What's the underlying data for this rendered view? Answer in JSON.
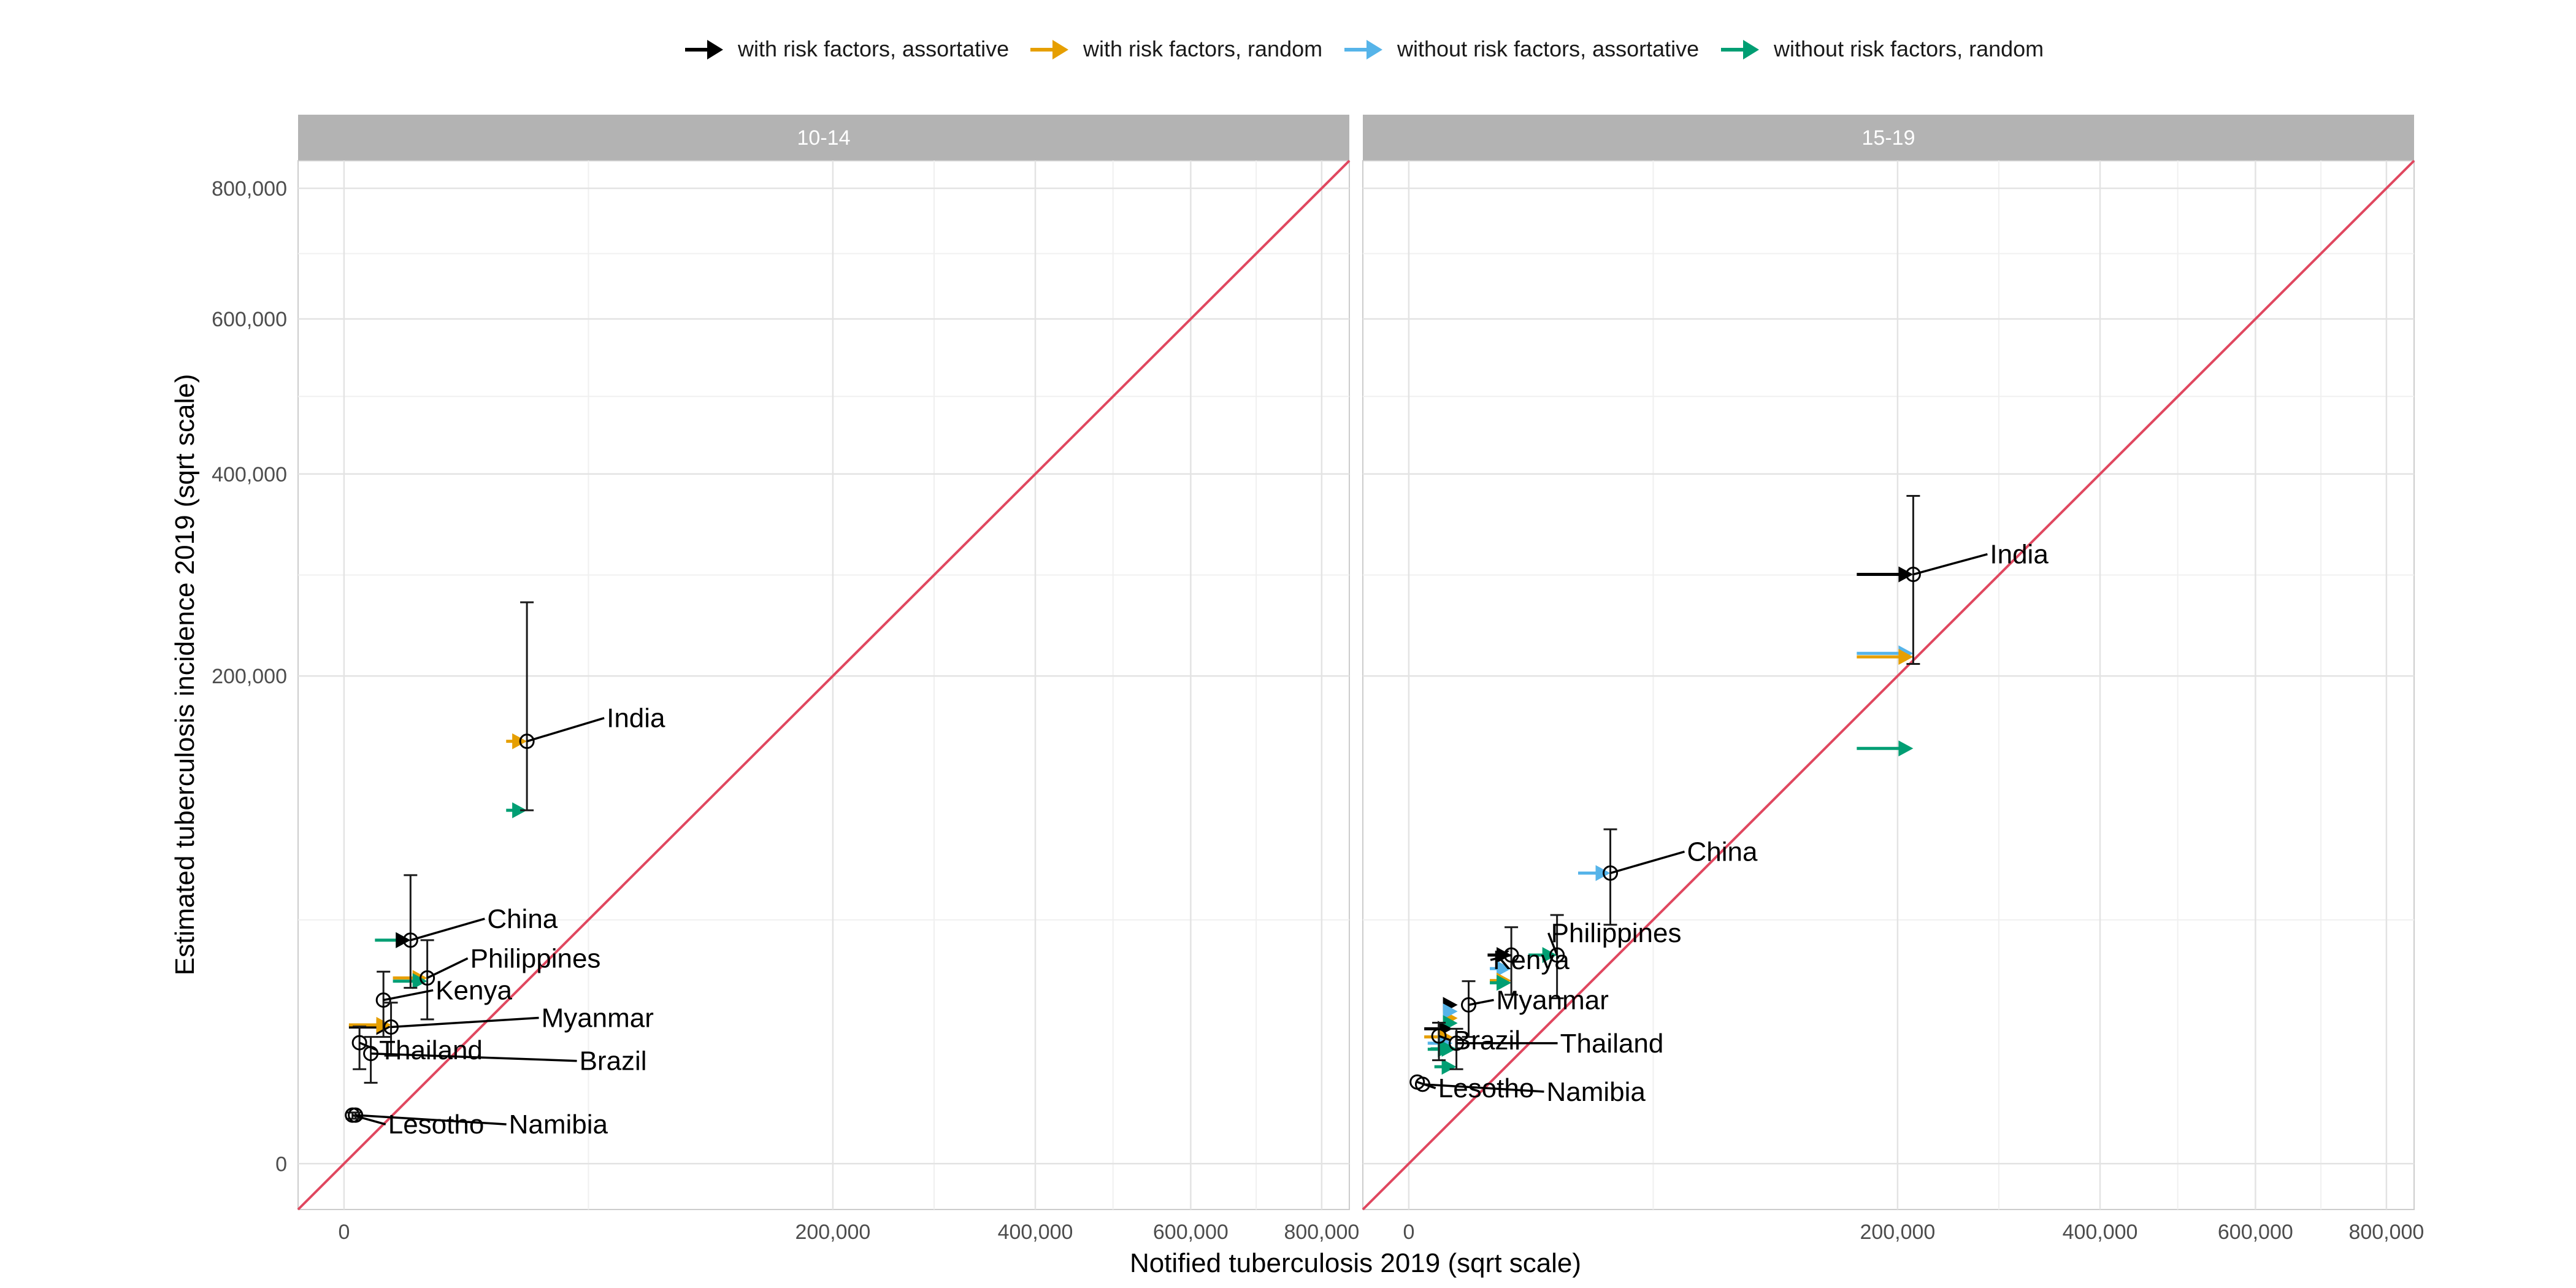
{
  "chart_data": {
    "type": "scatter",
    "xlabel": "Notified tuberculosis 2019 (sqrt scale)",
    "ylabel": "Estimated tuberculosis incidence 2019 (sqrt scale)",
    "x_scale": "sqrt",
    "y_scale": "sqrt",
    "xlim": [
      0,
      800000
    ],
    "ylim": [
      0,
      800000
    ],
    "x_ticks": [
      0,
      200000,
      400000,
      600000,
      800000
    ],
    "x_tick_labels": [
      "0",
      "200,000",
      "400,000",
      "600,000",
      "800,000"
    ],
    "y_ticks": [
      0,
      200000,
      400000,
      600000,
      800000
    ],
    "y_tick_labels": [
      "0",
      "200,000",
      "400,000",
      "600,000",
      "800,000"
    ],
    "grid": true,
    "reference_line": "y = x",
    "legend_position": "top",
    "legend": [
      {
        "label": "with risk factors, assortative",
        "color": "#000000"
      },
      {
        "label": "with risk factors, random",
        "color": "#E69F00"
      },
      {
        "label": "without risk factors, assortative",
        "color": "#56B4E9"
      },
      {
        "label": "without risk factors, random",
        "color": "#009E73"
      }
    ],
    "panels": [
      {
        "strip": "10-14",
        "countries": [
          {
            "name": "India",
            "x": 28000,
            "y": 150000,
            "ylo": 105000,
            "yhi": 265000,
            "arrows": [
              {
                "scenario": 1,
                "x0": 22000,
                "x1": 28000,
                "y": 150000
              },
              {
                "scenario": 3,
                "x0": 22000,
                "x1": 28000,
                "y": 105000
              }
            ]
          },
          {
            "name": "China",
            "x": 3700,
            "y": 42000,
            "ylo": 26000,
            "yhi": 70000,
            "arrows": [
              {
                "scenario": 3,
                "x0": 800,
                "x1": 3700,
                "y": 42000
              },
              {
                "scenario": 0,
                "x0": 2500,
                "x1": 3700,
                "y": 42000
              }
            ]
          },
          {
            "name": "Philippines",
            "x": 5800,
            "y": 29000,
            "ylo": 17500,
            "yhi": 42000,
            "arrows": [
              {
                "scenario": 1,
                "x0": 2000,
                "x1": 5800,
                "y": 29000
              },
              {
                "scenario": 3,
                "x0": 2000,
                "x1": 5800,
                "y": 28000
              }
            ]
          },
          {
            "name": "Kenya",
            "x": 1300,
            "y": 22500,
            "ylo": 13500,
            "yhi": 31000,
            "arrows": []
          },
          {
            "name": "Myanmar",
            "x": 1850,
            "y": 15700,
            "ylo": 9800,
            "yhi": 21800,
            "arrows": [
              {
                "scenario": 0,
                "x0": 20,
                "x1": 1850,
                "y": 15700
              },
              {
                "scenario": 1,
                "x0": 20,
                "x1": 1850,
                "y": 16200
              }
            ]
          },
          {
            "name": "Thailand",
            "x": 200,
            "y": 12300,
            "ylo": 7500,
            "yhi": 15800,
            "arrows": []
          },
          {
            "name": "Brazil",
            "x": 600,
            "y": 10200,
            "ylo": 5500,
            "yhi": 13500,
            "arrows": []
          },
          {
            "name": "Lesotho",
            "x": 60,
            "y": 1980,
            "ylo": 1700,
            "yhi": 2200,
            "arrows": []
          },
          {
            "name": "Namibia",
            "x": 110,
            "y": 1980,
            "ylo": 1700,
            "yhi": 2200,
            "arrows": []
          }
        ]
      },
      {
        "strip": "15-19",
        "countries": [
          {
            "name": "India",
            "x": 213000,
            "y": 292000,
            "ylo": 210000,
            "yhi": 375000,
            "arrows": [
              {
                "scenario": 0,
                "x0": 168000,
                "x1": 213000,
                "y": 292000
              },
              {
                "scenario": 2,
                "x0": 168000,
                "x1": 213000,
                "y": 219000
              },
              {
                "scenario": 1,
                "x0": 168000,
                "x1": 213000,
                "y": 216000
              },
              {
                "scenario": 3,
                "x0": 168000,
                "x1": 213000,
                "y": 145000
              }
            ]
          },
          {
            "name": "China",
            "x": 34000,
            "y": 71000,
            "ylo": 48000,
            "yhi": 94000,
            "arrows": [
              {
                "scenario": 2,
                "x0": 24000,
                "x1": 34000,
                "y": 71000
              }
            ]
          },
          {
            "name": "Philippines",
            "x": 18400,
            "y": 36600,
            "ylo": 23000,
            "yhi": 52000,
            "arrows": [
              {
                "scenario": 3,
                "x0": 12000,
                "x1": 18400,
                "y": 36600
              }
            ]
          },
          {
            "name": "Kenya",
            "x": 8800,
            "y": 36600,
            "ylo": 24000,
            "yhi": 47000,
            "arrows": [
              {
                "scenario": 0,
                "x0": 5200,
                "x1": 8800,
                "y": 36600
              },
              {
                "scenario": 2,
                "x0": 5500,
                "x1": 8800,
                "y": 32000
              },
              {
                "scenario": 1,
                "x0": 5500,
                "x1": 8800,
                "y": 28200
              },
              {
                "scenario": 3,
                "x0": 5500,
                "x1": 8800,
                "y": 27500
              }
            ]
          },
          {
            "name": "Myanmar",
            "x": 3000,
            "y": 21200,
            "ylo": 13500,
            "yhi": 28000,
            "arrows": [
              {
                "scenario": 0,
                "x0": 1000,
                "x1": 2000,
                "y": 21200
              },
              {
                "scenario": 1,
                "x0": 1000,
                "x1": 2000,
                "y": 17800
              },
              {
                "scenario": 2,
                "x0": 1000,
                "x1": 2000,
                "y": 19500
              },
              {
                "scenario": 3,
                "x0": 1300,
                "x1": 2000,
                "y": 16600
              }
            ]
          },
          {
            "name": "Brazil",
            "x": 760,
            "y": 13700,
            "ylo": 9000,
            "yhi": 16700,
            "arrows": [
              {
                "scenario": 0,
                "x0": 200,
                "x1": 1600,
                "y": 15300
              },
              {
                "scenario": 1,
                "x0": 200,
                "x1": 1600,
                "y": 13500
              },
              {
                "scenario": 2,
                "x0": 300,
                "x1": 1600,
                "y": 12200
              },
              {
                "scenario": 3,
                "x0": 300,
                "x1": 1600,
                "y": 11000
              }
            ]
          },
          {
            "name": "Thailand",
            "x": 1900,
            "y": 12200,
            "ylo": 7500,
            "yhi": 15300,
            "arrows": [
              {
                "scenario": 3,
                "x0": 400,
                "x1": 1900,
                "y": 11100
              },
              {
                "scenario": 3,
                "x0": 550,
                "x1": 1900,
                "y": 7900
              }
            ]
          },
          {
            "name": "Lesotho",
            "x": 60,
            "y": 5600,
            "ylo": 5600,
            "yhi": 5600,
            "arrows": []
          },
          {
            "name": "Namibia",
            "x": 160,
            "y": 5300,
            "ylo": 5300,
            "yhi": 5300,
            "arrows": []
          }
        ]
      }
    ]
  }
}
